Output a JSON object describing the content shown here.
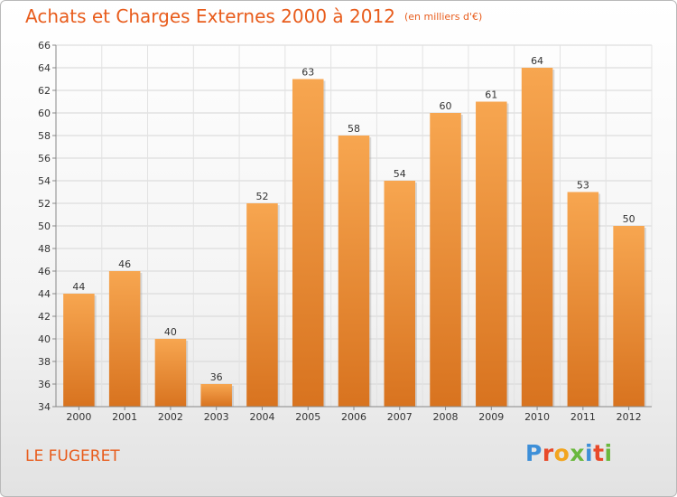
{
  "colors": {
    "title": "#e85c1c",
    "bar_light": "#f7a650",
    "bar_dark": "#d8731f"
  },
  "logo": {
    "letters": [
      {
        "char": "P",
        "color": "#3d8fd8"
      },
      {
        "char": "r",
        "color": "#e84a2a"
      },
      {
        "char": "o",
        "color": "#f2a51f"
      },
      {
        "char": "x",
        "color": "#6ab83d"
      },
      {
        "char": "i",
        "color": "#3d8fd8"
      },
      {
        "char": "t",
        "color": "#e84a2a"
      },
      {
        "char": "i",
        "color": "#6ab83d"
      }
    ]
  },
  "chart_data": {
    "type": "bar",
    "title": "Achats et Charges Externes 2000 à 2012",
    "subtitle": "(en milliers d'€)",
    "place": "LE FUGERET",
    "categories": [
      "2000",
      "2001",
      "2002",
      "2003",
      "2004",
      "2005",
      "2006",
      "2007",
      "2008",
      "2009",
      "2010",
      "2011",
      "2012"
    ],
    "values": [
      44,
      46,
      40,
      36,
      52,
      63,
      58,
      54,
      60,
      61,
      64,
      53,
      50
    ],
    "ylim": [
      34,
      66
    ],
    "yticks": [
      34,
      36,
      38,
      40,
      42,
      44,
      46,
      48,
      50,
      52,
      54,
      56,
      58,
      60,
      62,
      64,
      66
    ],
    "grid": true,
    "legend": "none"
  }
}
